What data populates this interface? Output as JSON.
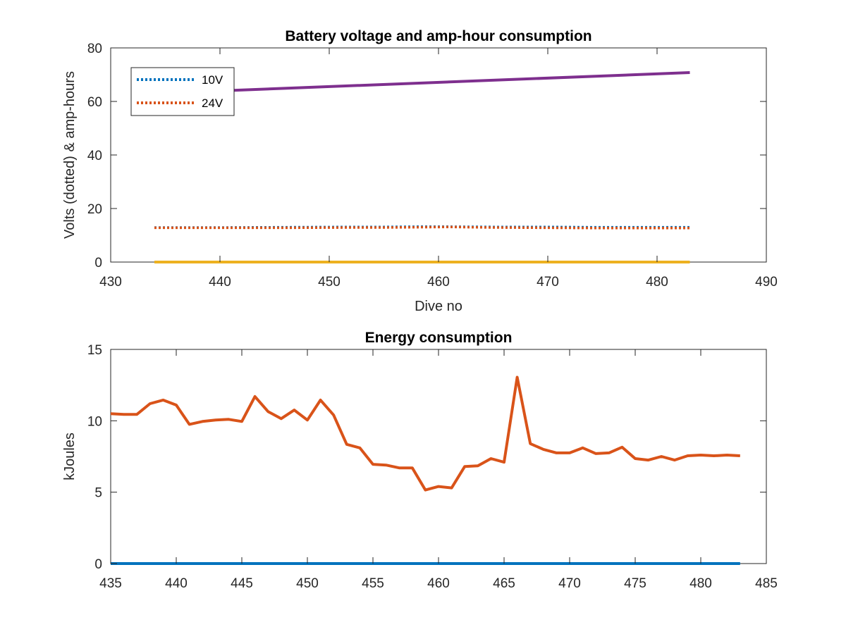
{
  "chart_data": [
    {
      "type": "line",
      "title": "Battery voltage and amp-hour consumption",
      "xlabel": "Dive no",
      "ylabel": "Volts (dotted) & amp-hours",
      "xlim": [
        430,
        490
      ],
      "ylim": [
        0,
        80
      ],
      "xticks": [
        "430",
        "440",
        "450",
        "460",
        "470",
        "480",
        "490"
      ],
      "yticks": [
        "0",
        "20",
        "40",
        "60",
        "80"
      ],
      "legend_position": "top-left",
      "legend": [
        "10V",
        "24V"
      ],
      "series": [
        {
          "name": "10V",
          "style": "dotted",
          "color": "#0072BD",
          "x": [
            434,
            440,
            446,
            452,
            455,
            458,
            461,
            465,
            470,
            474,
            478,
            483
          ],
          "y": [
            12.9,
            12.9,
            13.0,
            13.1,
            13.1,
            13.2,
            13.2,
            13.1,
            13.1,
            13.0,
            13.0,
            13.0
          ]
        },
        {
          "name": "24V",
          "style": "dotted",
          "color": "#D95319",
          "x": [
            434,
            440,
            446,
            452,
            455,
            458,
            461,
            465,
            470,
            474,
            478,
            483
          ],
          "y": [
            12.8,
            12.8,
            12.8,
            12.9,
            12.9,
            13.0,
            13.1,
            12.9,
            12.8,
            12.7,
            12.7,
            12.7
          ]
        },
        {
          "style": "solid",
          "color": "#EDB120",
          "x": [
            434,
            483
          ],
          "y": [
            0,
            0
          ]
        },
        {
          "style": "solid",
          "color": "#7E2F8E",
          "x": [
            434,
            483
          ],
          "y": [
            63.0,
            70.8
          ]
        }
      ]
    },
    {
      "type": "line",
      "title": "Energy consumption",
      "xlabel": "",
      "ylabel": "kJoules",
      "xlim": [
        435,
        485
      ],
      "ylim": [
        0,
        15
      ],
      "xticks": [
        "435",
        "440",
        "445",
        "450",
        "455",
        "460",
        "465",
        "470",
        "475",
        "480",
        "485"
      ],
      "yticks": [
        "0",
        "5",
        "10",
        "15"
      ],
      "series": [
        {
          "style": "solid",
          "color": "#0072BD",
          "x": [
            435,
            483
          ],
          "y": [
            0,
            0
          ]
        },
        {
          "style": "solid",
          "color": "#D95319",
          "x": [
            435,
            436,
            437,
            438,
            439,
            440,
            441,
            442,
            443,
            444,
            445,
            446,
            447,
            448,
            449,
            450,
            451,
            452,
            453,
            454,
            455,
            456,
            457,
            458,
            459,
            460,
            461,
            462,
            463,
            464,
            465,
            466,
            467,
            468,
            469,
            470,
            471,
            472,
            473,
            474,
            475,
            476,
            477,
            478,
            479,
            480,
            481,
            482,
            483
          ],
          "y": [
            10.5,
            10.45,
            10.45,
            11.2,
            11.45,
            11.1,
            9.75,
            9.95,
            10.05,
            10.1,
            9.95,
            11.7,
            10.65,
            10.15,
            10.75,
            10.05,
            11.45,
            10.4,
            8.35,
            8.1,
            6.95,
            6.9,
            6.7,
            6.7,
            5.15,
            5.4,
            5.3,
            6.8,
            6.85,
            7.35,
            7.1,
            13.05,
            8.4,
            8.0,
            7.75,
            7.75,
            8.1,
            7.7,
            7.75,
            8.15,
            7.35,
            7.25,
            7.5,
            7.25,
            7.55,
            7.6,
            7.55,
            7.6,
            7.55
          ]
        }
      ]
    }
  ]
}
